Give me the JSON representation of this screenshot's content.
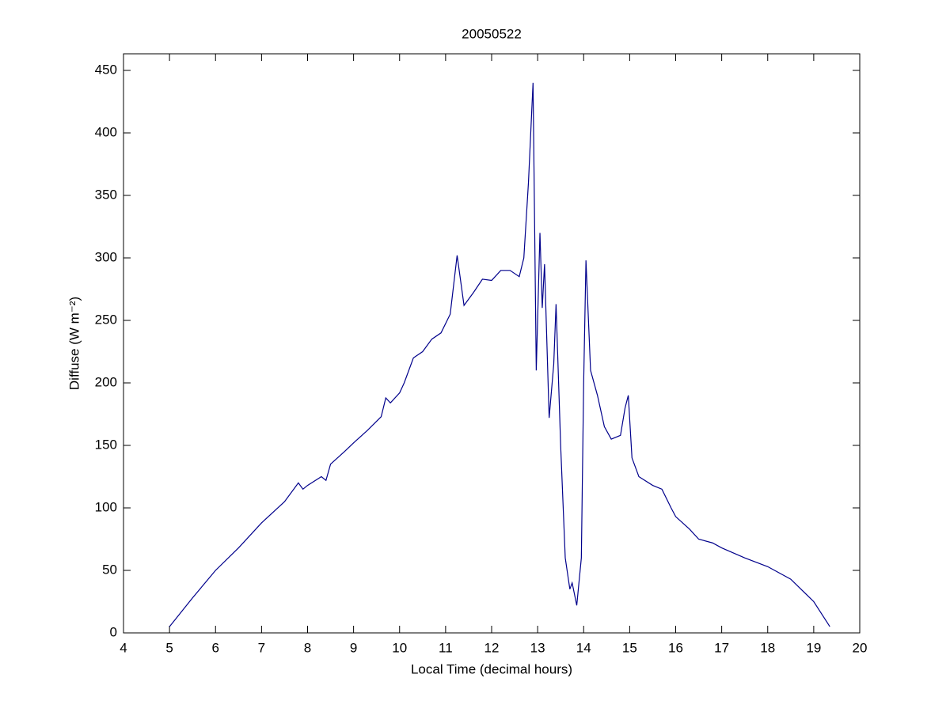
{
  "chart_data": {
    "type": "line",
    "title": "20050522",
    "xlabel": "Local Time (decimal hours)",
    "ylabel": "Diffuse (W m⁻²)",
    "x": [
      5.0,
      5.5,
      6.0,
      6.5,
      7.0,
      7.5,
      7.8,
      7.9,
      8.0,
      8.3,
      8.4,
      8.5,
      8.8,
      9.0,
      9.3,
      9.6,
      9.7,
      9.8,
      10.0,
      10.1,
      10.3,
      10.5,
      10.7,
      10.9,
      11.1,
      11.25,
      11.4,
      11.6,
      11.8,
      12.0,
      12.2,
      12.4,
      12.6,
      12.7,
      12.8,
      12.9,
      12.97,
      13.05,
      13.1,
      13.15,
      13.25,
      13.35,
      13.4,
      13.5,
      13.6,
      13.7,
      13.75,
      13.85,
      13.95,
      14.0,
      14.05,
      14.15,
      14.3,
      14.45,
      14.6,
      14.8,
      14.9,
      14.97,
      15.05,
      15.2,
      15.5,
      15.7,
      15.9,
      16.0,
      16.3,
      16.5,
      16.8,
      17.0,
      17.5,
      18.0,
      18.5,
      19.0,
      19.35
    ],
    "series": [
      {
        "name": "Diffuse",
        "color": "#00008b",
        "values": [
          5,
          28,
          50,
          68,
          88,
          105,
          120,
          115,
          118,
          125,
          122,
          135,
          145,
          152,
          162,
          173,
          188,
          184,
          192,
          200,
          220,
          225,
          235,
          240,
          255,
          302,
          262,
          272,
          283,
          282,
          290,
          290,
          285,
          300,
          360,
          440,
          210,
          320,
          260,
          295,
          172,
          215,
          263,
          150,
          60,
          35,
          40,
          22,
          60,
          200,
          298,
          210,
          190,
          165,
          155,
          158,
          180,
          190,
          140,
          125,
          118,
          115,
          100,
          93,
          83,
          75,
          72,
          68,
          60,
          53,
          43,
          25,
          5
        ]
      }
    ],
    "xlim": [
      4,
      20
    ],
    "xticks": [
      4,
      5,
      6,
      7,
      8,
      9,
      10,
      11,
      12,
      13,
      14,
      15,
      16,
      17,
      18,
      19,
      20
    ],
    "ylim": [
      0,
      450
    ],
    "yticks": [
      0,
      50,
      100,
      150,
      200,
      250,
      300,
      350,
      400,
      450
    ]
  }
}
